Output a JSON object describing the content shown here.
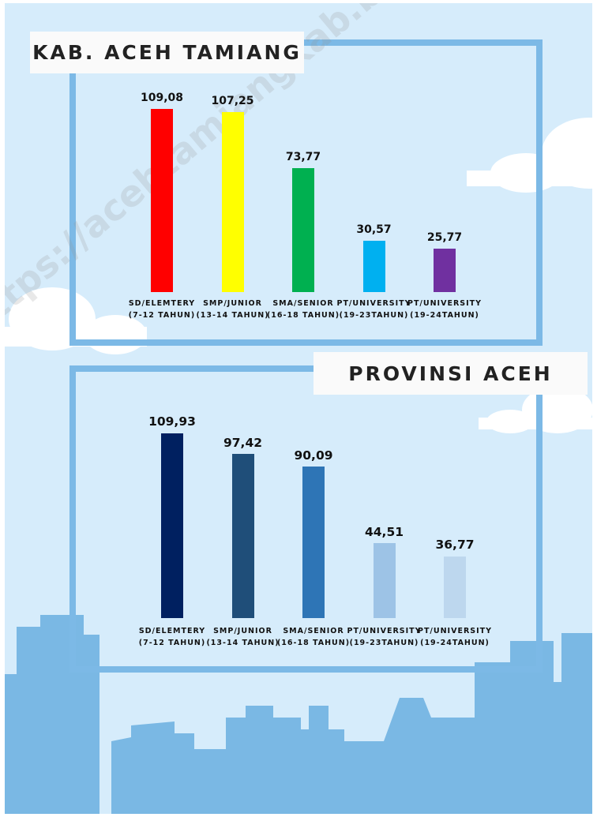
{
  "watermark": "https://acehtamiangkab.bps.go.id",
  "chart_data": [
    {
      "type": "bar",
      "title": "KAB. ACEH TAMIANG",
      "categories": [
        "SD/ELEMTERY\n(7-12 TAHUN)",
        "SMP/JUNIOR\n(13-14 TAHUN)",
        "SMA/SENIOR\n(16-18 TAHUN)",
        "PT/UNIVERSITY\n(19-23TAHUN)",
        "PT/UNIVERSITY\n(19-24TAHUN)"
      ],
      "values": [
        109.08,
        107.25,
        73.77,
        30.57,
        25.77
      ],
      "value_labels": [
        "109,08",
        "107,25",
        "73,77",
        "30,57",
        "25,77"
      ],
      "colors": [
        "#ff0000",
        "#ffff00",
        "#00b050",
        "#00b0f0",
        "#7030a0"
      ]
    },
    {
      "type": "bar",
      "title": "PROVINSI ACEH",
      "categories": [
        "SD/ELEMTERY\n(7-12 TAHUN)",
        "SMP/JUNIOR\n(13-14 TAHUN)",
        "SMA/SENIOR\n(16-18 TAHUN)",
        "PT/UNIVERSITY\n(19-23TAHUN)",
        "PT/UNIVERSITY\n(19-24TAHUN)"
      ],
      "values": [
        109.93,
        97.42,
        90.09,
        44.51,
        36.77
      ],
      "value_labels": [
        "109,93",
        "97,42",
        "90,09",
        "44,51",
        "36,77"
      ],
      "colors": [
        "#002060",
        "#1f4e79",
        "#2e75b6",
        "#9dc3e6",
        "#bdd7ee"
      ]
    }
  ]
}
